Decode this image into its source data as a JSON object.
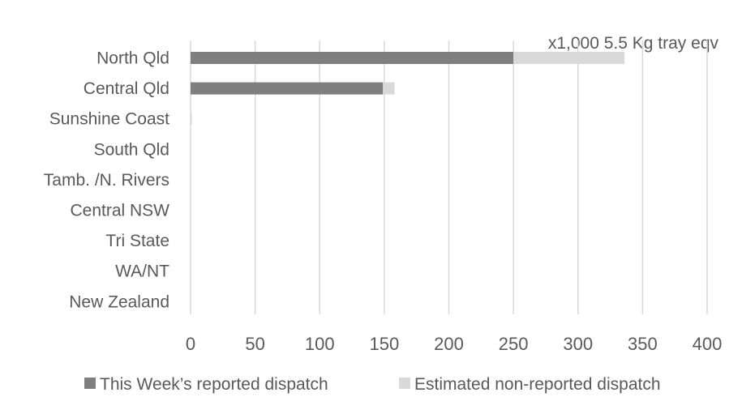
{
  "chart_data": {
    "type": "bar",
    "orientation": "horizontal",
    "stacked": true,
    "unit_label": "x1,000 5.5 Kg tray eqv",
    "categories": [
      "North Qld",
      "Central Qld",
      "Sunshine Coast",
      "South Qld",
      "Tamb. /N. Rivers",
      "Central NSW",
      "Tri State",
      "WA/NT",
      "New Zealand"
    ],
    "series": [
      {
        "name": "This Week’s reported dispatch",
        "color": "#7f7f7f",
        "values": [
          250,
          149,
          0,
          0,
          0,
          0,
          0,
          0,
          0
        ]
      },
      {
        "name": "Estimated non-reported dispatch",
        "color": "#d9d9d9",
        "values": [
          86,
          9,
          1,
          0,
          0,
          0,
          0,
          0,
          0
        ]
      }
    ],
    "xlim": [
      0,
      400
    ],
    "xticks": [
      "0",
      "50",
      "100",
      "150",
      "200",
      "250",
      "300",
      "350",
      "400"
    ],
    "grid": "vertical",
    "legend_position": "bottom"
  }
}
